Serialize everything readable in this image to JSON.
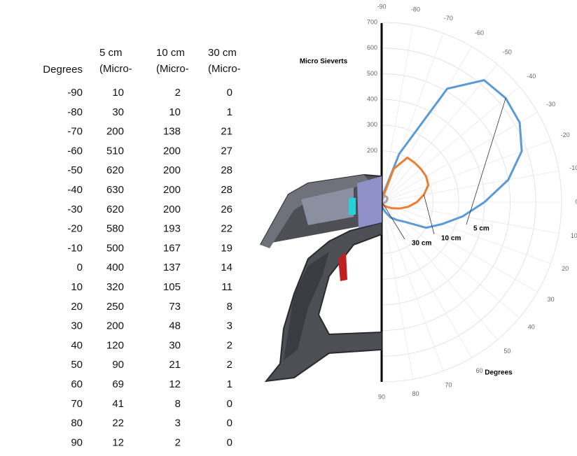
{
  "table": {
    "headers": [
      [
        "Degrees"
      ],
      [
        "5 cm",
        "(Micro-"
      ],
      [
        "10 cm",
        "(Micro-"
      ],
      [
        "30 cm",
        "(Micro-"
      ]
    ]
  },
  "chart_data": {
    "type": "polar-line",
    "title": "Micro Sieverts",
    "angle_label": "Degrees",
    "categories": [
      -90,
      -80,
      -70,
      -60,
      -50,
      -40,
      -30,
      -20,
      -10,
      0,
      10,
      20,
      30,
      40,
      50,
      60,
      70,
      80,
      90
    ],
    "series": [
      {
        "name": "5 cm",
        "color": "#5b9bd5",
        "values": [
          10,
          30,
          200,
          510,
          620,
          630,
          620,
          580,
          500,
          400,
          320,
          250,
          200,
          120,
          90,
          69,
          41,
          22,
          12
        ]
      },
      {
        "name": "10 cm",
        "color": "#ed7d31",
        "values": [
          2,
          10,
          138,
          200,
          200,
          200,
          200,
          193,
          167,
          137,
          105,
          73,
          48,
          30,
          21,
          12,
          8,
          3,
          2
        ]
      },
      {
        "name": "30 cm",
        "color": "#a5a5a5",
        "values": [
          0,
          1,
          21,
          27,
          28,
          28,
          26,
          22,
          19,
          14,
          11,
          8,
          3,
          2,
          2,
          1,
          0,
          0,
          0
        ]
      }
    ],
    "rlim": [
      0,
      700
    ],
    "rticks": [
      200,
      300,
      400,
      500,
      600,
      700
    ],
    "grid": true
  }
}
